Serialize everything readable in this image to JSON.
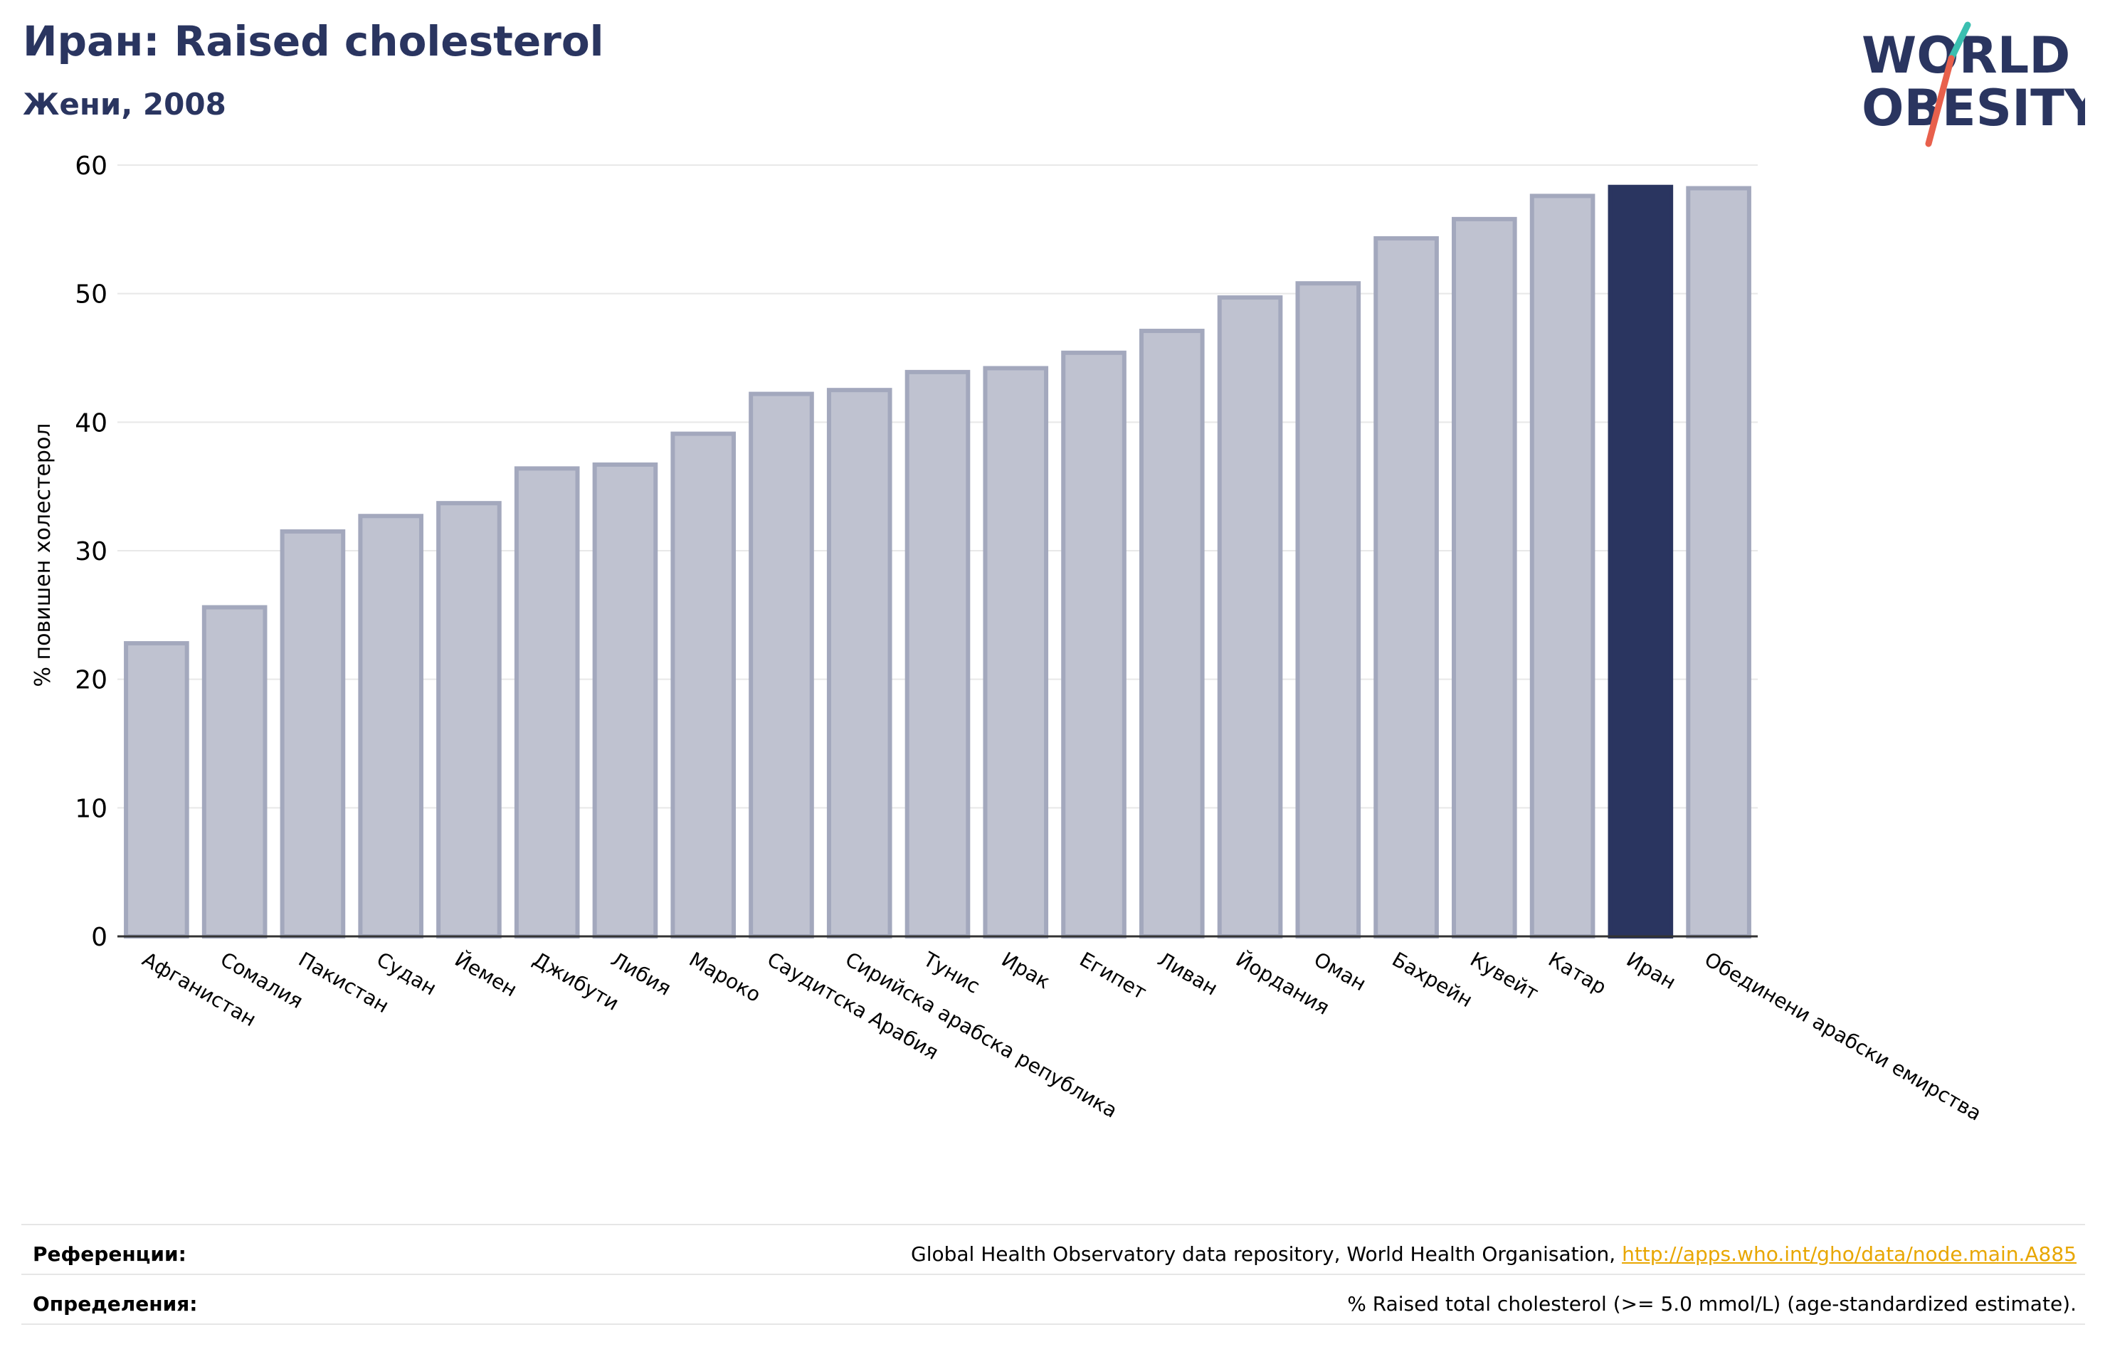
{
  "header": {
    "title": "Иран: Raised cholesterol",
    "subtitle": "Жени, 2008"
  },
  "logo": {
    "line1": "WORLD",
    "line2": "OBESITY",
    "colors": {
      "text": "#2a3560",
      "slash_top": "#3bbfb0",
      "slash_bottom": "#e8604c"
    }
  },
  "chart_data": {
    "type": "bar",
    "categories": [
      "Афганистан",
      "Сомалия",
      "Пакистан",
      "Судан",
      "Йемен",
      "Джибути",
      "Либия",
      "Мароко",
      "Саудитска Арабия",
      "Сирийска арабска република",
      "Тунис",
      "Ирак",
      "Египет",
      "Ливан",
      "Йордания",
      "Оман",
      "Бахрейн",
      "Кувейт",
      "Катар",
      "Иран",
      "Обединени арабски емирства"
    ],
    "values": [
      22.8,
      25.6,
      31.5,
      32.7,
      33.7,
      36.4,
      36.7,
      39.1,
      42.2,
      42.5,
      43.9,
      44.2,
      45.4,
      47.1,
      49.7,
      50.8,
      54.3,
      55.8,
      57.6,
      58.3,
      58.2
    ],
    "highlight": "Иран",
    "ylabel": "% повишен холестерол",
    "ylim": [
      0,
      60
    ],
    "yticks": [
      0,
      10,
      20,
      30,
      40,
      50,
      60
    ],
    "grid": true,
    "colors": {
      "bar": "#bfc2d0",
      "bar_edge": "#a3a8bd",
      "highlight": "#2a3560",
      "axis": "#333333",
      "grid": "#e8e8e8"
    }
  },
  "footer": {
    "references_label": "Референции:",
    "references_text": "Global Health Observatory data repository, World Health Organisation, ",
    "references_link": "http://apps.who.int/gho/data/node.main.A885",
    "definitions_label": "Определения:",
    "definitions_text": "% Raised total cholesterol (>= 5.0 mmol/L) (age-standardized estimate)."
  }
}
